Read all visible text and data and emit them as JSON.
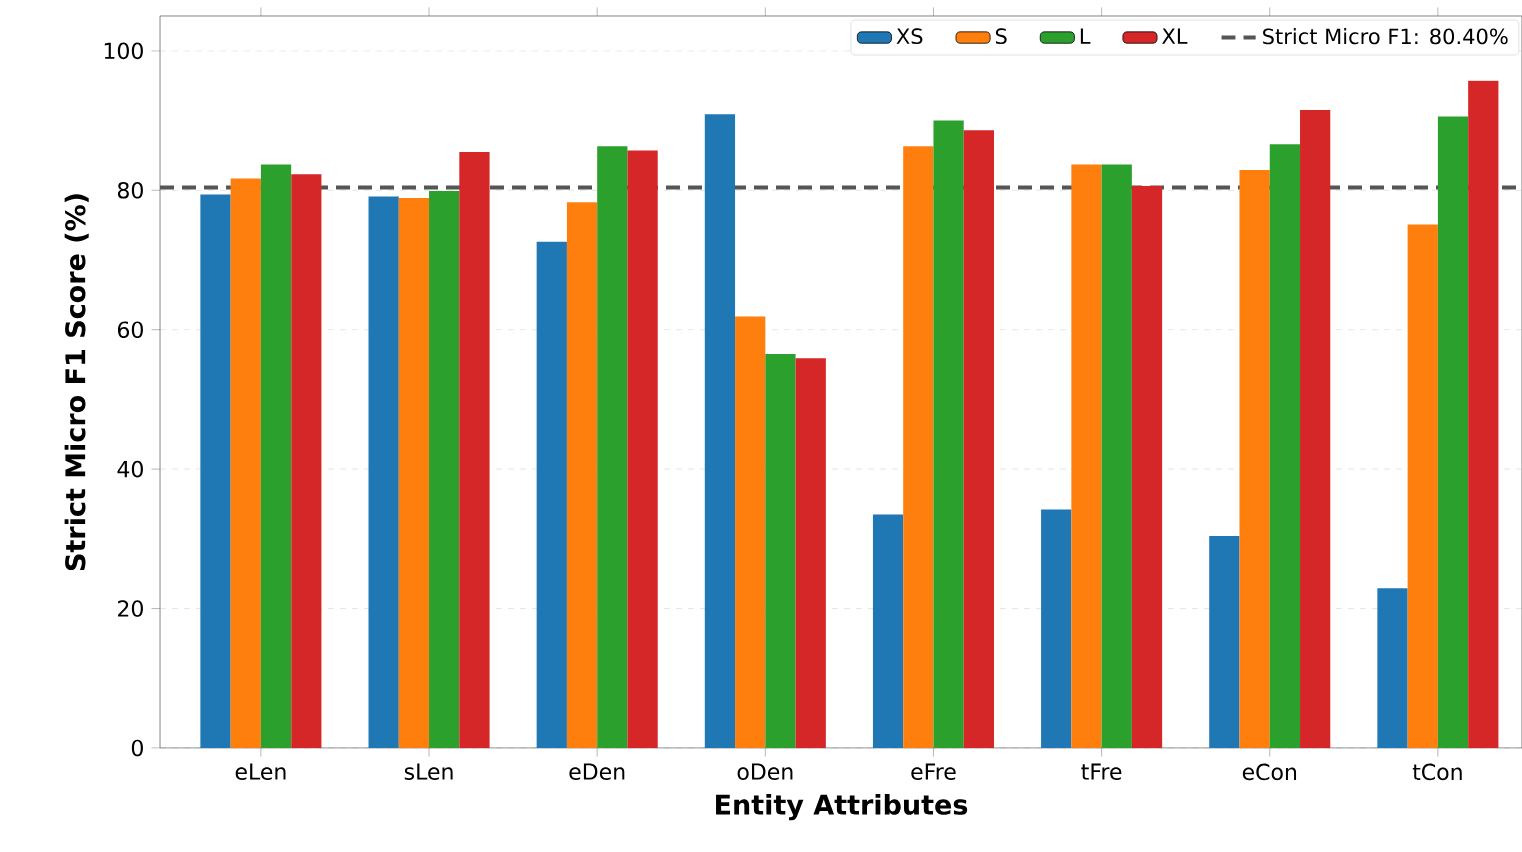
{
  "chart_data": {
    "type": "bar",
    "xlabel": "Entity Attributes",
    "ylabel": "Strict Micro F1 Score (%)",
    "categories": [
      "eLen",
      "sLen",
      "eDen",
      "oDen",
      "eFre",
      "tFre",
      "eCon",
      "tCon"
    ],
    "series": [
      {
        "name": "XS",
        "color": "#1f77b4",
        "values": [
          79.4,
          79.1,
          72.6,
          90.9,
          33.5,
          34.2,
          30.4,
          22.9
        ]
      },
      {
        "name": "S",
        "color": "#ff7f0e",
        "values": [
          81.7,
          78.9,
          78.3,
          61.9,
          86.3,
          83.7,
          82.9,
          75.1
        ]
      },
      {
        "name": "L",
        "color": "#2ca02c",
        "values": [
          83.7,
          79.9,
          86.3,
          56.5,
          90.0,
          83.7,
          86.6,
          90.6
        ]
      },
      {
        "name": "XL",
        "color": "#d62728",
        "values": [
          82.3,
          85.5,
          85.7,
          55.9,
          88.6,
          80.6,
          91.5,
          95.7
        ]
      }
    ],
    "ylim": [
      0,
      105
    ],
    "yticks": [
      0,
      20,
      40,
      60,
      80,
      100
    ],
    "grid": "y",
    "legend": "top right",
    "ref_lines": [
      {
        "axis": "y",
        "value": 80.4,
        "label": "Strict Micro F1: 80.40%",
        "color": "#555555",
        "line_style": "dashed"
      }
    ]
  }
}
